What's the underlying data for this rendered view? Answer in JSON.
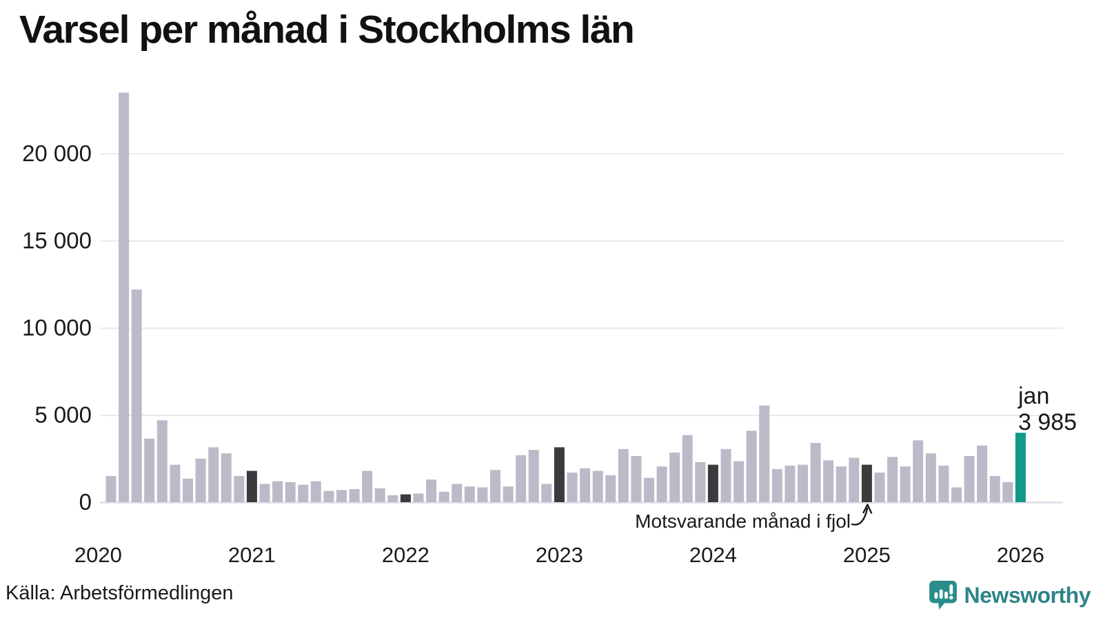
{
  "title": "Varsel per månad i Stockholms län",
  "source": "Källa: Arbetsförmedlingen",
  "brand": {
    "name": "Newsworthy"
  },
  "annotation": {
    "text": "Motsvarande månad i fjol",
    "target_month": "2025-01"
  },
  "current_label": {
    "month": "jan",
    "value": "3 985"
  },
  "colors": {
    "bar": "#bdb9c8",
    "highlight_dark": "#3b3b3d",
    "current": "#12998a",
    "grid": "#e9e8ef",
    "text": "#1a1a1a",
    "brand_teal": "#2b8c8c"
  },
  "y_axis": {
    "ticks": [
      {
        "value": 0,
        "label": "0"
      },
      {
        "value": 5000,
        "label": "5 000"
      },
      {
        "value": 10000,
        "label": "10 000"
      },
      {
        "value": 15000,
        "label": "15 000"
      },
      {
        "value": 20000,
        "label": "20 000"
      }
    ]
  },
  "x_axis": {
    "ticks": [
      "2020",
      "2021",
      "2022",
      "2023",
      "2024",
      "2025",
      "2026"
    ]
  },
  "chart_data": {
    "type": "bar",
    "title": "Varsel per månad i Stockholms län",
    "xlabel": "",
    "ylabel": "",
    "ylim": [
      0,
      24000
    ],
    "grid": true,
    "x": [
      "2020-02",
      "2020-03",
      "2020-04",
      "2020-05",
      "2020-06",
      "2020-07",
      "2020-08",
      "2020-09",
      "2020-10",
      "2020-11",
      "2020-12",
      "2021-01",
      "2021-02",
      "2021-03",
      "2021-04",
      "2021-05",
      "2021-06",
      "2021-07",
      "2021-08",
      "2021-09",
      "2021-10",
      "2021-11",
      "2021-12",
      "2022-01",
      "2022-02",
      "2022-03",
      "2022-04",
      "2022-05",
      "2022-06",
      "2022-07",
      "2022-08",
      "2022-09",
      "2022-10",
      "2022-11",
      "2022-12",
      "2023-01",
      "2023-02",
      "2023-03",
      "2023-04",
      "2023-05",
      "2023-06",
      "2023-07",
      "2023-08",
      "2023-09",
      "2023-10",
      "2023-11",
      "2023-12",
      "2024-01",
      "2024-02",
      "2024-03",
      "2024-04",
      "2024-05",
      "2024-06",
      "2024-07",
      "2024-08",
      "2024-09",
      "2024-10",
      "2024-11",
      "2024-12",
      "2025-01",
      "2025-02",
      "2025-03",
      "2025-04",
      "2025-05",
      "2025-06",
      "2025-07",
      "2025-08",
      "2025-09",
      "2025-10",
      "2025-11",
      "2025-12",
      "2026-01"
    ],
    "values": [
      1500,
      23500,
      12200,
      3650,
      4700,
      2150,
      1350,
      2500,
      3150,
      2800,
      1500,
      1800,
      1050,
      1200,
      1150,
      1000,
      1200,
      650,
      700,
      750,
      1800,
      800,
      400,
      450,
      500,
      1300,
      600,
      1050,
      900,
      850,
      1850,
      900,
      2700,
      3000,
      1050,
      3150,
      1700,
      1950,
      1800,
      1550,
      3050,
      2650,
      1400,
      2050,
      2850,
      3850,
      2300,
      2150,
      3050,
      2350,
      4100,
      5550,
      1900,
      2100,
      2150,
      3400,
      2400,
      2050,
      2550,
      2150,
      1700,
      2600,
      2050,
      3550,
      2800,
      2100,
      850,
      2650,
      3250,
      1500,
      1150,
      3985
    ],
    "highlight_dark_months": [
      "2021-01",
      "2022-01",
      "2023-01",
      "2024-01",
      "2025-01"
    ],
    "current_month": "2026-01",
    "legend": null
  }
}
